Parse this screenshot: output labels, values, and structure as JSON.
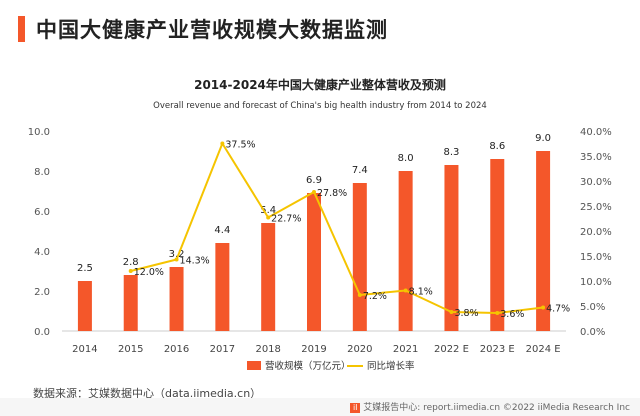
{
  "page_title": "中国大健康产业营收规模大数据监测",
  "chart_data": {
    "type": "bar+line",
    "title": "2014-2024年中国大健康产业整体营收及预测",
    "subtitle": "Overall revenue and forecast of China's big health industry from 2014 to 2024",
    "categories": [
      "2014",
      "2015",
      "2016",
      "2017",
      "2018",
      "2019",
      "2020",
      "2021",
      "2022 E",
      "2023 E",
      "2024 E"
    ],
    "series": [
      {
        "name": "营收规模（万亿元）",
        "type": "bar",
        "axis": "left",
        "color": "#f4572a",
        "values": [
          2.5,
          2.8,
          3.2,
          4.4,
          5.4,
          6.9,
          7.4,
          8.0,
          8.3,
          8.6,
          9.0
        ],
        "labels": [
          "2.5",
          "2.8",
          "3.2",
          "4.4",
          "5.4",
          "6.9",
          "7.4",
          "8.0",
          "8.3",
          "8.6",
          "9.0"
        ]
      },
      {
        "name": "同比增长率",
        "type": "line",
        "axis": "right",
        "color": "#f5c400",
        "values": [
          null,
          12.0,
          14.3,
          37.5,
          22.7,
          27.8,
          7.2,
          8.1,
          3.8,
          3.6,
          4.7
        ],
        "labels": [
          "",
          "12.0%",
          "14.3%",
          "37.5%",
          "22.7%",
          "27.8%",
          "7.2%",
          "8.1%",
          "3.8%",
          "3.6%",
          "4.7%"
        ]
      }
    ],
    "ylim_left": [
      0,
      10
    ],
    "yticks_left": [
      "0.0",
      "2.0",
      "4.0",
      "6.0",
      "8.0",
      "10.0"
    ],
    "ylim_right": [
      0,
      40
    ],
    "yticks_right": [
      "0.0%",
      "5.0%",
      "10.0%",
      "15.0%",
      "20.0%",
      "25.0%",
      "30.0%",
      "35.0%",
      "40.0%"
    ],
    "grid": false,
    "legend_position": "bottom-center"
  },
  "footer": {
    "source": "数据来源：艾媒数据中心（data.iimedia.cn）",
    "logo_mark": "iI",
    "watermark": "艾媒报告中心: report.iimedia.cn ©2022 iiMedia Research Inc"
  }
}
